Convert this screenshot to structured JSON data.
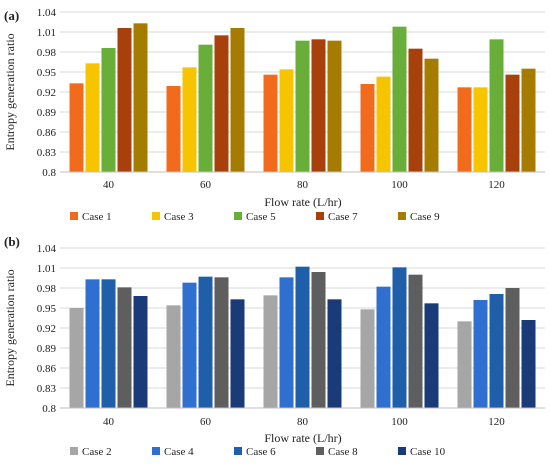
{
  "chart_data": [
    {
      "type": "bar",
      "panel_label": "(a)",
      "categories": [
        "40",
        "60",
        "80",
        "100",
        "120"
      ],
      "series": [
        {
          "name": "Case 1",
          "color": "#F26B1D",
          "values": [
            0.933,
            0.929,
            0.946,
            0.932,
            0.927
          ]
        },
        {
          "name": "Case 3",
          "color": "#F7C500",
          "values": [
            0.963,
            0.957,
            0.954,
            0.943,
            0.927
          ]
        },
        {
          "name": "Case 5",
          "color": "#6AAE3A",
          "values": [
            0.986,
            0.991,
            0.997,
            1.018,
            0.999
          ]
        },
        {
          "name": "Case 7",
          "color": "#A8400C",
          "values": [
            1.016,
            1.005,
            0.999,
            0.985,
            0.946
          ]
        },
        {
          "name": "Case 9",
          "color": "#A67C00",
          "values": [
            1.023,
            1.016,
            0.997,
            0.97,
            0.955
          ]
        }
      ],
      "xlabel": "Flow rate (L/hr)",
      "ylabel": "Entropy generation ratio",
      "ylim": [
        0.8,
        1.04
      ],
      "yticks": [
        "0.8",
        "0.83",
        "0.86",
        "0.89",
        "0.92",
        "0.95",
        "0.98",
        "1.01",
        "1.04"
      ],
      "grid": true,
      "legend": "bottom"
    },
    {
      "type": "bar",
      "panel_label": "(b)",
      "categories": [
        "40",
        "60",
        "80",
        "100",
        "120"
      ],
      "series": [
        {
          "name": "Case 2",
          "color": "#A6A6A6",
          "values": [
            0.95,
            0.954,
            0.969,
            0.948,
            0.93
          ]
        },
        {
          "name": "Case 4",
          "color": "#2F6FD0",
          "values": [
            0.993,
            0.988,
            0.996,
            0.982,
            0.962
          ]
        },
        {
          "name": "Case 6",
          "color": "#1F5FAA",
          "values": [
            0.993,
            0.997,
            1.012,
            1.011,
            0.971
          ]
        },
        {
          "name": "Case 8",
          "color": "#5E5E5E",
          "values": [
            0.981,
            0.996,
            1.004,
            1.0,
            0.98
          ]
        },
        {
          "name": "Case 10",
          "color": "#1B3A78",
          "values": [
            0.968,
            0.963,
            0.963,
            0.957,
            0.932
          ]
        }
      ],
      "xlabel": "Flow rate (L/hr)",
      "ylabel": "Entropy generation ratio",
      "ylim": [
        0.8,
        1.04
      ],
      "yticks": [
        "0.8",
        "0.83",
        "0.86",
        "0.89",
        "0.92",
        "0.95",
        "0.98",
        "1.01",
        "1.04"
      ],
      "grid": true,
      "legend": "bottom"
    }
  ]
}
